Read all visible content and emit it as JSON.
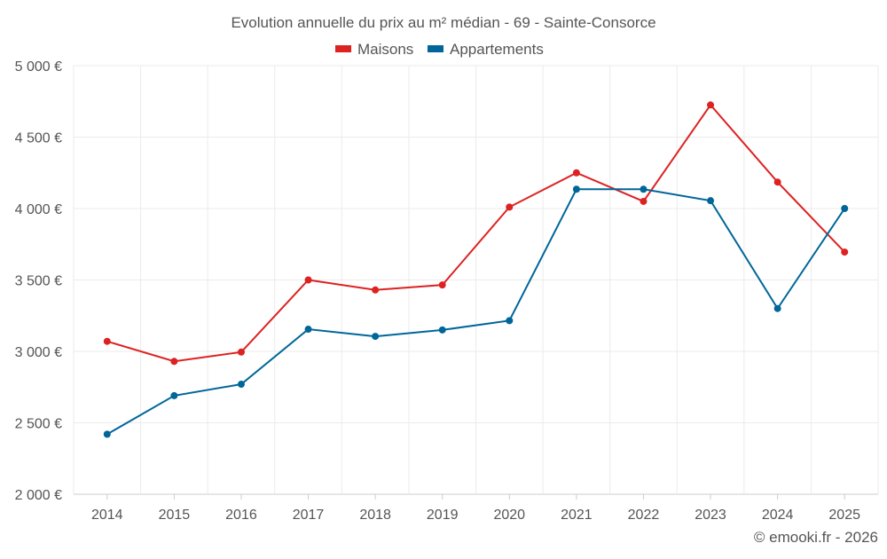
{
  "chart_data": {
    "type": "line",
    "title": "Evolution annuelle du prix au m² médian - 69 - Sainte-Consorce",
    "xlabel": "",
    "ylabel": "",
    "categories": [
      "2014",
      "2015",
      "2016",
      "2017",
      "2018",
      "2019",
      "2020",
      "2021",
      "2022",
      "2023",
      "2024",
      "2025"
    ],
    "ylim": [
      2000,
      5000
    ],
    "yticks": [
      2000,
      2500,
      3000,
      3500,
      4000,
      4500,
      5000
    ],
    "ytick_labels": [
      "2 000 €",
      "2 500 €",
      "3 000 €",
      "3 500 €",
      "4 000 €",
      "4 500 €",
      "5 000 €"
    ],
    "grid": true,
    "legend_position": "top-center",
    "series": [
      {
        "name": "Maisons",
        "color": "#dd2222",
        "values": [
          3070,
          2930,
          2995,
          3500,
          3430,
          3465,
          4010,
          4250,
          4050,
          4725,
          4185,
          3695
        ]
      },
      {
        "name": "Appartements",
        "color": "#006699",
        "values": [
          2420,
          2690,
          2770,
          3155,
          3105,
          3150,
          3215,
          4135,
          4135,
          4055,
          3300,
          4000
        ]
      }
    ],
    "credit": "© emooki.fr - 2026"
  }
}
